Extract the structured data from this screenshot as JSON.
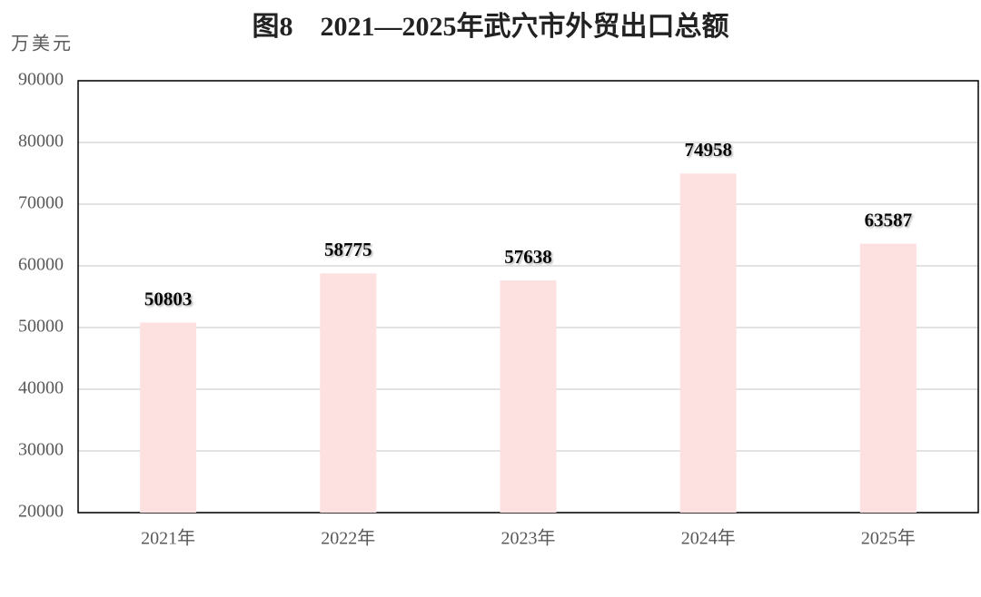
{
  "chart_data": {
    "type": "bar",
    "title": "图8    2021—2025年武穴市外贸出口总额",
    "y_label": "万美元",
    "categories": [
      "2021年",
      "2022年",
      "2023年",
      "2024年",
      "2025年"
    ],
    "values": [
      50803,
      58775,
      57638,
      74958,
      63587
    ],
    "color": "#fde0e0",
    "ylim": [
      20000,
      90000
    ],
    "yticks": [
      20000,
      30000,
      40000,
      50000,
      60000,
      70000,
      80000,
      90000
    ],
    "grid": true
  }
}
